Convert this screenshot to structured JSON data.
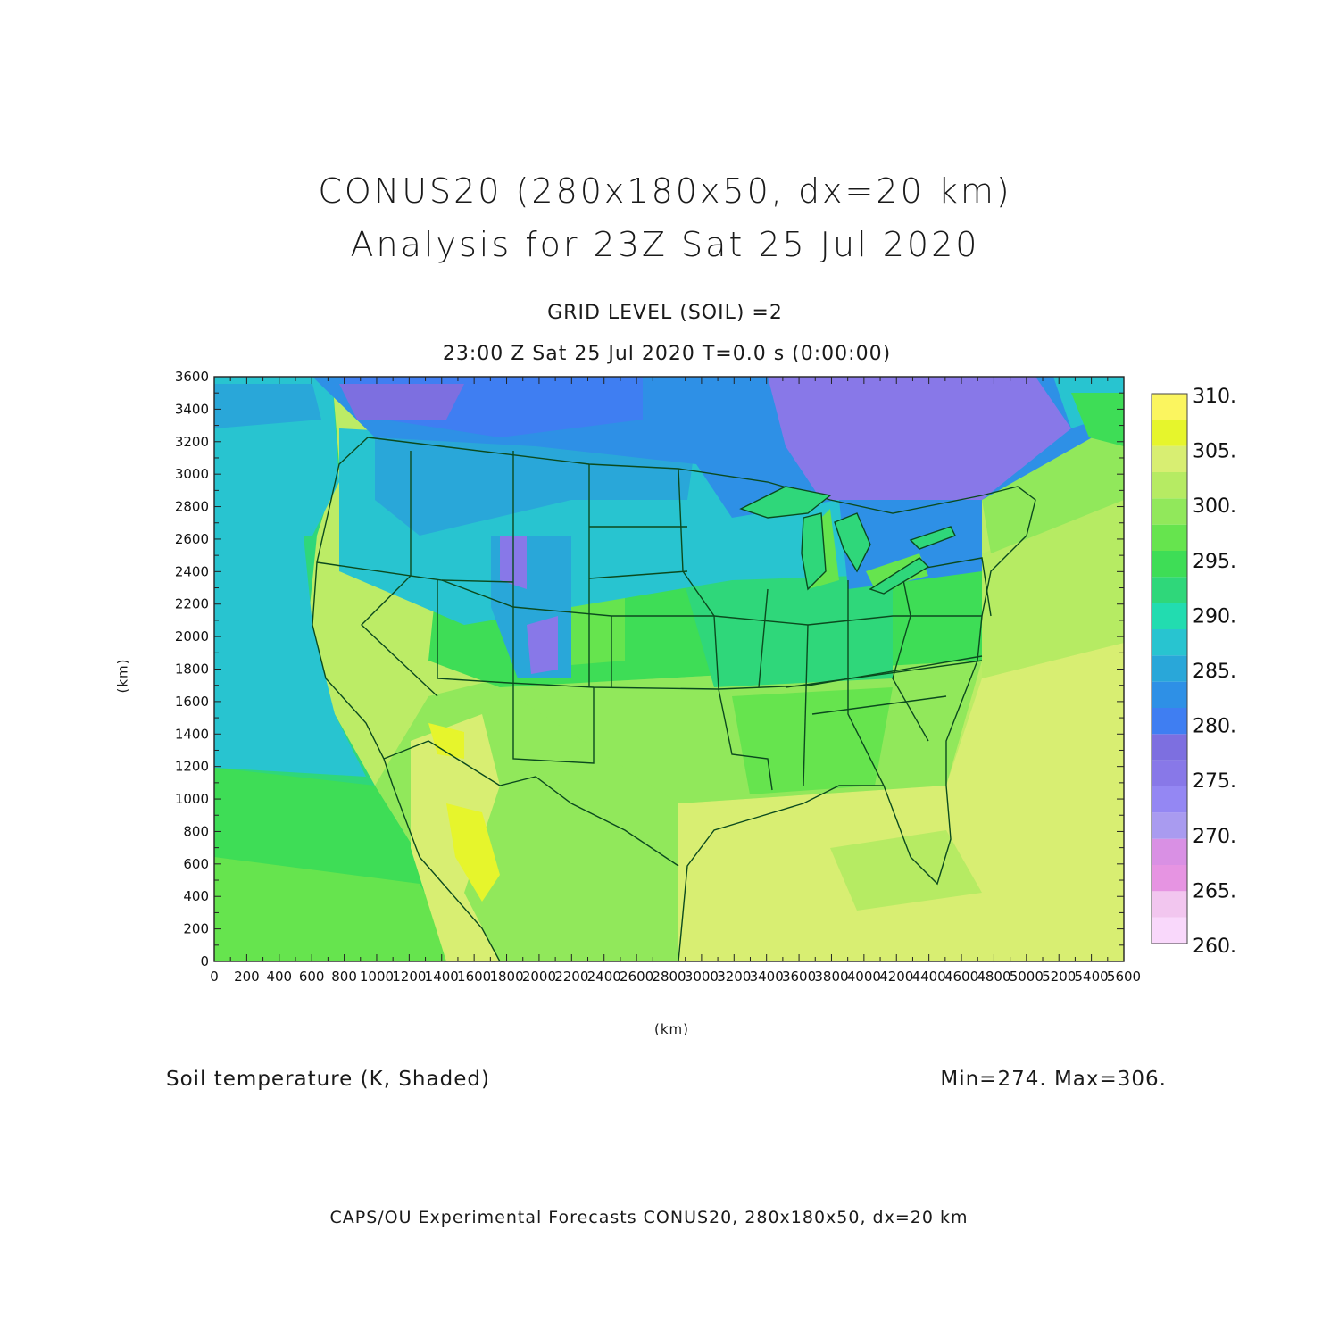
{
  "title": {
    "line1": "CONUS20 (280x180x50, dx=20 km)",
    "line2": "Analysis for 23Z Sat 25 Jul 2020"
  },
  "subtitle": {
    "level": "GRID LEVEL (SOIL) =2",
    "time": "23:00 Z Sat 25 Jul 2020    T=0.0 s (0:00:00)"
  },
  "caption": {
    "field": "Soil temperature (K, Shaded)",
    "minmax": "Min=274. Max=306."
  },
  "footer": "CAPS/OU Experimental Forecasts  CONUS20, 280x180x50, dx=20 km",
  "chart_data": {
    "type": "heatmap",
    "xlabel": "(km)",
    "ylabel": "(km)",
    "xlim": [
      0,
      5600
    ],
    "ylim": [
      0,
      3600
    ],
    "x_ticks": [
      0,
      200,
      400,
      600,
      800,
      1000,
      1200,
      1400,
      1600,
      1800,
      2000,
      2200,
      2400,
      2600,
      2800,
      3000,
      3200,
      3400,
      3600,
      3800,
      4000,
      4200,
      4400,
      4600,
      4800,
      5000,
      5200,
      5400,
      5600
    ],
    "y_ticks": [
      0,
      200,
      400,
      600,
      800,
      1000,
      1200,
      1400,
      1600,
      1800,
      2000,
      2200,
      2400,
      2600,
      2800,
      3000,
      3200,
      3400,
      3600
    ],
    "colorbar": {
      "labels": [
        "310.",
        "305.",
        "300.",
        "295.",
        "290.",
        "285.",
        "280.",
        "275.",
        "270.",
        "265.",
        "260."
      ],
      "levels": [
        260,
        262.5,
        265,
        267.5,
        270,
        272.5,
        275,
        277.5,
        280,
        282.5,
        285,
        287.5,
        290,
        292.5,
        295,
        297.5,
        300,
        302.5,
        305,
        307.5,
        310
      ],
      "colors": [
        "#f9d8fb",
        "#f2c6ef",
        "#e694e2",
        "#d990e4",
        "#a99bf0",
        "#9487f3",
        "#8878e8",
        "#7d6fe0",
        "#3f7ef2",
        "#2e90e6",
        "#29a7d9",
        "#28c4d0",
        "#22dcb0",
        "#2fd77a",
        "#3edd56",
        "#66e44e",
        "#91e85b",
        "#b6eb63",
        "#d8ee72",
        "#e6f52c",
        "#fbf55f"
      ]
    },
    "min": 274,
    "max": 306,
    "units": "K"
  }
}
